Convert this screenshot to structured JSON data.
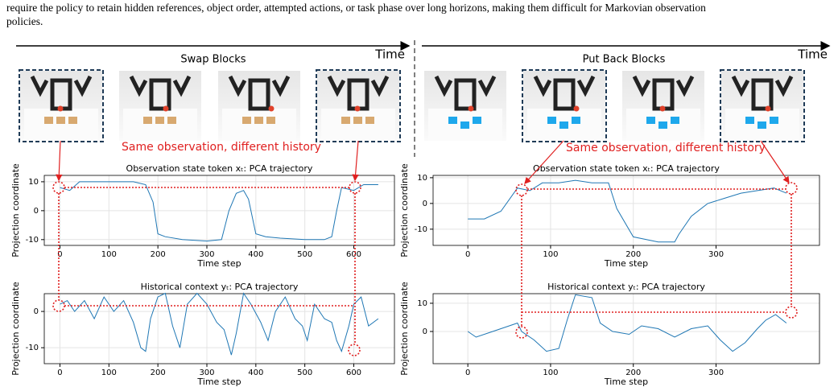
{
  "caption": [
    "require the policy to retain hidden references, object order, attempted actions, or task phase over long horizons, making them difficult for Markovian observation",
    "policies."
  ],
  "panels": [
    {
      "title": "Swap Blocks",
      "time_label": "Time",
      "annotation": "Same observation, different history"
    },
    {
      "title": "Put Back Blocks",
      "time_label": "Time",
      "annotation": "Same observation, different history"
    }
  ],
  "chart_data": [
    {
      "type": "line",
      "title": "Observation state token xₜ: PCA trajectory",
      "x_label": "Time step",
      "y_label": "Projection coordinate",
      "color": "#1f77b4",
      "x": [
        0,
        20,
        40,
        100,
        150,
        175,
        190,
        200,
        215,
        250,
        300,
        330,
        345,
        360,
        375,
        385,
        400,
        420,
        450,
        500,
        540,
        555,
        565,
        575,
        600,
        620,
        650
      ],
      "values": [
        8,
        7,
        10,
        10,
        10,
        9,
        3,
        -8,
        -9,
        -10,
        -10.5,
        -10,
        0,
        6,
        7,
        4,
        -8,
        -9,
        -9.5,
        -10,
        -10,
        -9,
        0,
        8,
        7,
        9,
        9
      ],
      "xlim": [
        -32,
        683
      ],
      "ylim": [
        -12,
        12.2
      ],
      "xticks": [
        0,
        100,
        200,
        300,
        400,
        500,
        600
      ],
      "yticks": [
        -10,
        0,
        10
      ],
      "grid": true
    },
    {
      "type": "line",
      "title": "Historical context yₜ: PCA trajectory",
      "x_label": "Time step",
      "y_label": "Projection coordinate",
      "color": "#1f77b4",
      "x": [
        0,
        15,
        30,
        50,
        70,
        90,
        110,
        130,
        150,
        165,
        175,
        185,
        200,
        215,
        230,
        245,
        260,
        280,
        300,
        320,
        335,
        350,
        360,
        375,
        390,
        410,
        425,
        440,
        460,
        480,
        495,
        505,
        520,
        540,
        555,
        565,
        575,
        590,
        600,
        615,
        630,
        650
      ],
      "values": [
        2,
        3,
        0,
        3,
        -2,
        4,
        0,
        3,
        -3,
        -10,
        -11,
        -2,
        4,
        5,
        -4,
        -10,
        2,
        5,
        2,
        -3,
        -5,
        -12,
        -6,
        5,
        2,
        -3,
        -8,
        0,
        4,
        -2,
        -4,
        -8,
        2,
        -2,
        -3,
        -8,
        -11,
        -4,
        2,
        4,
        -4,
        -2
      ],
      "xlim": [
        -32,
        683
      ],
      "ylim": [
        -14.4,
        4.9
      ],
      "xticks": [
        0,
        100,
        200,
        300,
        400,
        500,
        600
      ],
      "yticks": [
        -10,
        0
      ],
      "grid": true
    },
    {
      "type": "line",
      "title": "Observation state token xₜ: PCA trajectory",
      "x_label": "Time step",
      "y_label": "Projection coordinate",
      "color": "#1f77b4",
      "x": [
        0,
        20,
        40,
        60,
        75,
        90,
        110,
        130,
        150,
        170,
        180,
        200,
        230,
        250,
        255,
        270,
        290,
        310,
        330,
        350,
        370,
        385
      ],
      "values": [
        -6,
        -6,
        -3,
        6,
        5,
        8,
        8,
        9,
        8,
        8,
        -2,
        -13,
        -15,
        -15,
        -12,
        -5,
        0,
        2,
        4,
        5,
        6,
        4
      ],
      "xlim": [
        -42,
        425
      ],
      "ylim": [
        -16.3,
        10.9
      ],
      "xticks": [
        0,
        100,
        200,
        300
      ],
      "yticks": [
        -10,
        0,
        10
      ],
      "grid": true
    },
    {
      "type": "line",
      "title": "Historical context yₜ: PCA trajectory",
      "x_label": "Time step",
      "y_label": "Projection coordinate",
      "color": "#1f77b4",
      "x": [
        0,
        10,
        30,
        50,
        60,
        65,
        80,
        95,
        110,
        120,
        130,
        150,
        160,
        175,
        195,
        210,
        230,
        250,
        270,
        290,
        305,
        320,
        335,
        350,
        360,
        372,
        385
      ],
      "values": [
        0,
        -2,
        0,
        2,
        3,
        0,
        -3,
        -7,
        -6,
        4,
        13,
        12,
        3,
        0,
        -1,
        2,
        1,
        -2,
        1,
        2,
        -3,
        -7,
        -4,
        1,
        4,
        6,
        3
      ],
      "xlim": [
        -42,
        425
      ],
      "ylim": [
        -11.4,
        13.4
      ],
      "xticks": [
        0,
        100,
        200,
        300
      ],
      "yticks": [
        0,
        10
      ],
      "grid": true
    }
  ]
}
